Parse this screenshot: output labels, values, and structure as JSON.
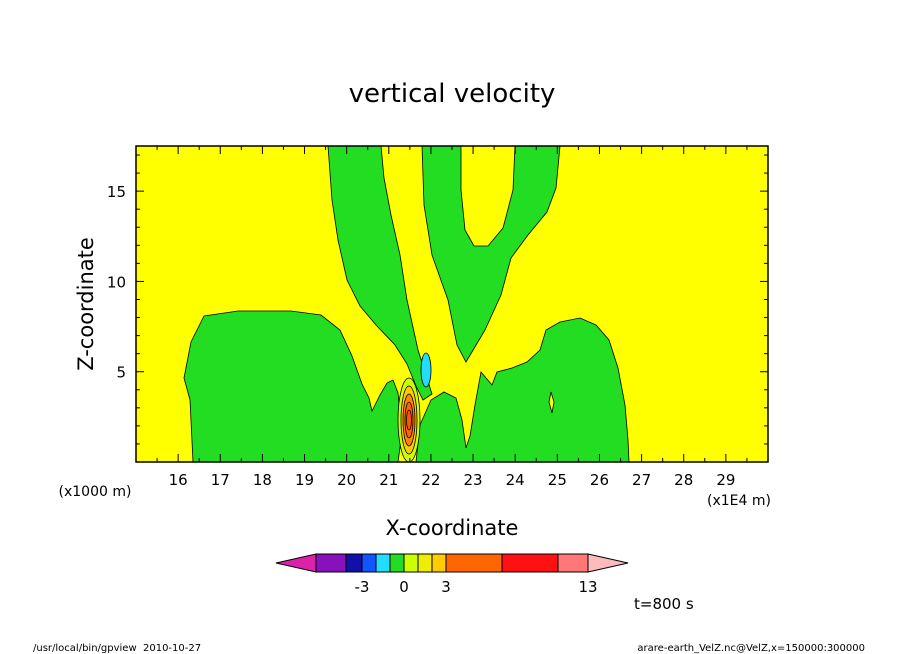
{
  "chart_data": {
    "type": "heatmap",
    "title": "vertical velocity",
    "xlabel": "X-coordinate",
    "ylabel": "Z-coordinate",
    "x_tick_labels": [
      "16",
      "17",
      "18",
      "19",
      "20",
      "21",
      "22",
      "23",
      "24",
      "25",
      "26",
      "27",
      "28",
      "29"
    ],
    "x_ticks": [
      16,
      17,
      18,
      19,
      20,
      21,
      22,
      23,
      24,
      25,
      26,
      27,
      28,
      29
    ],
    "x_scale_note": "(x1E4 m)",
    "xlim": [
      15,
      30
    ],
    "y_tick_labels": [
      "5",
      "10",
      "15"
    ],
    "y_ticks": [
      5,
      10,
      15
    ],
    "y_scale_note": "(x1000 m)",
    "ylim": [
      0,
      17.5
    ],
    "time_label": "t=800 s",
    "colorbar": {
      "tick_labels": [
        "-3",
        "0",
        "3",
        "13"
      ],
      "colors": [
        "#dd22aa",
        "#8811bb",
        "#1111aa",
        "#1155ff",
        "#22ddff",
        "#22dd22",
        "#ccff00",
        "#eeee00",
        "#ffcc00",
        "#ff6600",
        "#ff1111",
        "#ff7777",
        "#ffbbbb"
      ]
    },
    "field_summary": {
      "background_color": "#ffff00",
      "weak_negative_color": "#22dd22",
      "updraft_core_x": 21.5,
      "updraft_core_z": 3,
      "downdraft_x": 21.9,
      "downdraft_z": 5
    },
    "footer_left": "/usr/local/bin/gpview  2010-10-27",
    "footer_right": "arare-earth_VelZ.nc@VelZ,x=150000:300000"
  }
}
